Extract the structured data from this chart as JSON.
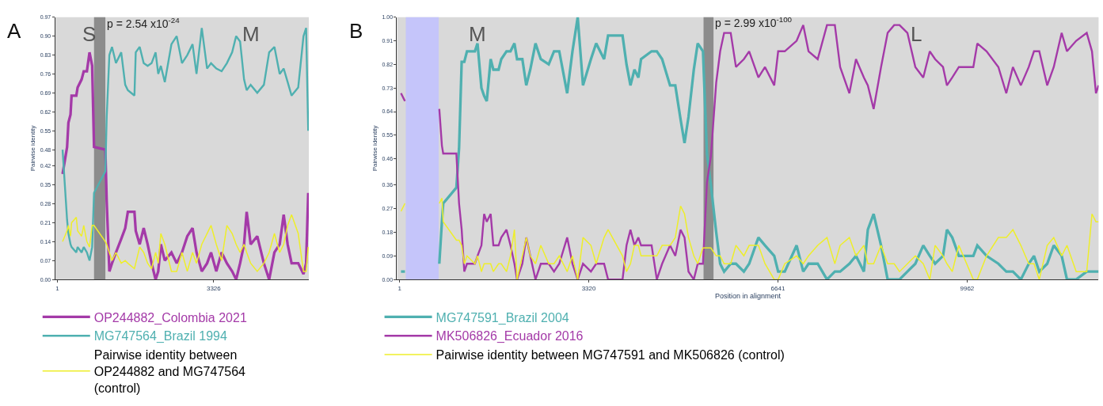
{
  "chart_data": [
    {
      "type": "line",
      "title": "A",
      "ylabel": "Pairwise identity",
      "legend": "bottom left",
      "grid": false,
      "xlim": [
        -45,
        5350
      ],
      "xticks": [
        1,
        3326
      ],
      "ylim": [
        0,
        0.97
      ],
      "yticks": [
        {
          "value": 0,
          "label": "0.00"
        },
        {
          "value": 0.07,
          "label": "0.07"
        },
        {
          "value": 0.14,
          "label": "0.14"
        },
        {
          "value": 0.21,
          "label": "0.21"
        },
        {
          "value": 0.28,
          "label": "0.28"
        },
        {
          "value": 0.35,
          "label": "0.35"
        },
        {
          "value": 0.42,
          "label": "0.42"
        },
        {
          "value": 0.48,
          "label": "0.48"
        },
        {
          "value": 0.55,
          "label": "0.55"
        },
        {
          "value": 0.62,
          "label": "0.62"
        },
        {
          "value": 0.69,
          "label": "0.69"
        },
        {
          "value": 0.76,
          "label": "0.76"
        },
        {
          "value": 0.83,
          "label": "0.83"
        },
        {
          "value": 0.9,
          "label": "0.90"
        },
        {
          "value": 0.97,
          "label": "0.97"
        }
      ],
      "bands": [
        {
          "axis": "x",
          "from": 782,
          "to": 1023,
          "color": "#8c8c8c"
        }
      ],
      "annotations": [
        "S",
        {
          "text": "p = 2.54 x10$^{-24}$",
          "x": 1023,
          "y": 0.95
        },
        "M"
      ],
      "x": [
        113,
        209,
        237,
        282,
        304,
        405,
        433,
        518,
        563,
        630,
        686,
        742,
        782,
        1023,
        1051,
        1108,
        1164,
        1248,
        1360,
        1445,
        1501,
        1641,
        1669,
        1753,
        1838,
        1922,
        2006,
        2091,
        2147,
        2203,
        2287,
        2428,
        2540,
        2652,
        2765,
        2877,
        2961,
        3073,
        3186,
        3270,
        3382,
        3495,
        3607,
        3719,
        3804,
        3888,
        3972,
        4028,
        4113,
        4253,
        4394,
        4506,
        4618,
        4730,
        4815,
        4899,
        4983,
        5124,
        5236,
        5292,
        5337
      ],
      "series": [
        {
          "name": "OP244882_Colombia 2021",
          "color": "#a43aa8",
          "values": [
            0.39,
            0.49,
            0.58,
            0.61,
            0.68,
            0.68,
            0.71,
            0.74,
            0.77,
            0.77,
            0.84,
            0.79,
            0.49,
            0.48,
            0.29,
            0.03,
            0.06,
            0.1,
            0.15,
            0.19,
            0.25,
            0.25,
            0.18,
            0.13,
            0.19,
            0.13,
            0.06,
            0,
            0.03,
            0.13,
            0.07,
            0.1,
            0.06,
            0.1,
            0.16,
            0.19,
            0.1,
            0.03,
            0.06,
            0.1,
            0.03,
            0.1,
            0.06,
            0.03,
            0,
            0.06,
            0.13,
            0.25,
            0.13,
            0.16,
            0.06,
            0,
            0.1,
            0.13,
            0.24,
            0.13,
            0.06,
            0.06,
            0.02,
            0.06,
            0.32
          ]
        },
        {
          "name": "MG747564_Brazil 1994",
          "color": "#4fb0b0",
          "values": [
            0.48,
            0.22,
            0.17,
            0.13,
            0.12,
            0.1,
            0.12,
            0.1,
            0.12,
            0.1,
            0.07,
            0.12,
            0.32,
            0.4,
            0.6,
            0.83,
            0.86,
            0.8,
            0.84,
            0.72,
            0.7,
            0.68,
            0.84,
            0.86,
            0.8,
            0.79,
            0.8,
            0.84,
            0.76,
            0.79,
            0.73,
            0.87,
            0.9,
            0.8,
            0.83,
            0.87,
            0.76,
            0.93,
            0.78,
            0.8,
            0.78,
            0.77,
            0.8,
            0.84,
            0.9,
            0.88,
            0.74,
            0.7,
            0.72,
            0.69,
            0.72,
            0.84,
            0.86,
            0.76,
            0.78,
            0.73,
            0.68,
            0.71,
            0.9,
            0.93,
            0.55
          ]
        },
        {
          "name": "Pairwise identity between OP244882 and MG747564 (control)",
          "color": "#eeee2a",
          "values": [
            0.14,
            0.18,
            0.2,
            0.16,
            0.21,
            0.23,
            0.18,
            0.16,
            0.2,
            0.14,
            0.12,
            0.2,
            0.2,
            0.14,
            0.13,
            0.1,
            0.07,
            0.1,
            0.06,
            0.07,
            0.06,
            0.04,
            0.06,
            0.12,
            0.1,
            0.06,
            0.04,
            0.1,
            0.06,
            0.17,
            0.13,
            0.03,
            0.03,
            0.1,
            0.03,
            0.1,
            0.06,
            0.13,
            0.17,
            0.2,
            0.13,
            0.07,
            0.2,
            0.17,
            0.13,
            0.1,
            0.13,
            0.1,
            0.06,
            0.03,
            0.06,
            0.1,
            0.17,
            0.1,
            0.13,
            0.2,
            0.24,
            0.17,
            0.03,
            0.03,
            0.12
          ]
        }
      ]
    },
    {
      "type": "line",
      "title": "B",
      "ylabel": "Pairwise identity",
      "xlabel": "Position in alignment",
      "legend": "bottom left",
      "grid": false,
      "xlim": [
        -45,
        12270
      ],
      "xticks": [
        1,
        3320,
        6641,
        9962
      ],
      "ylim": [
        0,
        1
      ],
      "yticks": [
        {
          "value": 0,
          "label": "0.00"
        },
        {
          "value": 0.09,
          "label": "0.09"
        },
        {
          "value": 0.18,
          "label": "0.18"
        },
        {
          "value": 0.27,
          "label": "0.27"
        },
        {
          "value": 0.36,
          "label": "0.36"
        },
        {
          "value": 0.46,
          "label": "0.46"
        },
        {
          "value": 0.55,
          "label": "0.55"
        },
        {
          "value": 0.64,
          "label": "0.64"
        },
        {
          "value": 0.73,
          "label": "0.73"
        },
        {
          "value": 0.82,
          "label": "0.82"
        },
        {
          "value": 0.91,
          "label": "0.91"
        },
        {
          "value": 1,
          "label": "1.00"
        }
      ],
      "bands": [
        {
          "axis": "x",
          "from": 108,
          "to": 686,
          "color": "#c5c5fa"
        },
        {
          "axis": "x",
          "from": 5335,
          "to": 5510,
          "color": "#8c8c8c"
        }
      ],
      "annotations": [
        "M",
        {
          "text": "p = 2.99 x10$^{-100}$",
          "x": 5510,
          "y": 0.98
        },
        "L"
      ],
      "x": [
        24,
        93,
        395,
        696,
        742,
        765,
        996,
        1043,
        1089,
        1135,
        1182,
        1321,
        1367,
        1436,
        1483,
        1529,
        1598,
        1645,
        1737,
        1784,
        1876,
        1946,
        2015,
        2061,
        2154,
        2223,
        2293,
        2385,
        2478,
        2617,
        2710,
        2802,
        2941,
        3034,
        3126,
        3219,
        3358,
        3450,
        3589,
        3659,
        3913,
        3983,
        4052,
        4122,
        4191,
        4238,
        4423,
        4515,
        4608,
        4747,
        4839,
        4932,
        5001,
        5071,
        5164,
        5233,
        5325,
        5395,
        5464,
        5557,
        5627,
        5696,
        5812,
        5904,
        6043,
        6136,
        6298,
        6414,
        6576,
        6645,
        6761,
        6969,
        7085,
        7178,
        7339,
        7502,
        7640,
        7733,
        7895,
        8011,
        8150,
        8219,
        8321,
        8451,
        8567,
        8682,
        8775,
        8914,
        9053,
        9192,
        9307,
        9400,
        9539,
        9608,
        9701,
        9817,
        10071,
        10141,
        10303,
        10511,
        10650,
        10766,
        10905,
        11044,
        11136,
        11229,
        11368,
        11483,
        11622,
        11715,
        11877,
        12062,
        12154,
        12224,
        12270
      ],
      "series": [
        {
          "name": "MG747591_Brazil 2004",
          "color": "#4fb0b0",
          "values": [
            0.03,
            0.03,
            null,
            0.06,
            0.22,
            0.29,
            0.35,
            0.5,
            0.83,
            0.83,
            0.87,
            0.87,
            0.9,
            0.73,
            0.7,
            0.68,
            0.84,
            0.8,
            0.8,
            0.84,
            0.87,
            0.87,
            0.9,
            0.84,
            0.84,
            0.74,
            0.8,
            0.9,
            0.84,
            0.82,
            0.87,
            0.87,
            0.71,
            0.87,
            1.0,
            0.74,
            0.84,
            0.9,
            0.84,
            0.93,
            0.93,
            0.82,
            0.74,
            0.8,
            0.77,
            0.84,
            0.87,
            0.87,
            0.84,
            0.74,
            0.74,
            0.61,
            0.52,
            0.62,
            0.8,
            0.9,
            0.87,
            0.48,
            0.36,
            0.18,
            0.06,
            0.03,
            0.06,
            0.06,
            0.03,
            0.06,
            0.16,
            0.13,
            0.09,
            0.03,
            0.03,
            0.13,
            0.03,
            0.06,
            0.06,
            0,
            0.03,
            0.03,
            0.06,
            0.09,
            0.03,
            0.19,
            0.25,
            0.13,
            0,
            0,
            0,
            0.03,
            0.06,
            0.13,
            0.09,
            0.06,
            0.09,
            0.19,
            0.16,
            0.09,
            0.09,
            0.13,
            0.09,
            0.06,
            0.03,
            0.03,
            0,
            0.06,
            0.09,
            0.03,
            0.06,
            0.13,
            0.09,
            0,
            0,
            0.03,
            0.03,
            0.03,
            0.03
          ]
        },
        {
          "name": "MK506826_Ecuador 2016",
          "color": "#a43aa8",
          "values": [
            0.71,
            0.68,
            null,
            0.65,
            0.51,
            0.48,
            0.48,
            0.29,
            0.19,
            0.03,
            0.06,
            0.06,
            0.09,
            0.13,
            0.25,
            0.22,
            0.25,
            0.13,
            0.13,
            0.16,
            0.19,
            0.13,
            0.06,
            0,
            0.06,
            0.16,
            0.09,
            0,
            0.06,
            0.06,
            0.03,
            0.06,
            0.16,
            0.06,
            0,
            0.06,
            0.03,
            0.06,
            0.06,
            0,
            0,
            0.13,
            0.19,
            0.13,
            0.16,
            0.13,
            0.13,
            0,
            0.06,
            0.13,
            0.09,
            0.19,
            0.16,
            0.03,
            0,
            0.06,
            0.06,
            0.37,
            0.47,
            0.75,
            0.87,
            0.94,
            0.94,
            0.81,
            0.84,
            0.87,
            0.77,
            0.81,
            0.74,
            0.87,
            0.87,
            0.91,
            0.97,
            0.87,
            0.84,
            0.97,
            0.97,
            0.81,
            0.71,
            0.84,
            0.77,
            0.74,
            0.65,
            0.81,
            0.94,
            0.97,
            0.97,
            0.94,
            0.81,
            0.77,
            0.87,
            0.84,
            0.81,
            0.74,
            0.77,
            0.81,
            0.81,
            0.9,
            0.87,
            0.81,
            0.71,
            0.81,
            0.74,
            0.81,
            0.87,
            0.87,
            0.74,
            0.81,
            0.94,
            0.87,
            0.91,
            0.94,
            0.87,
            0.71,
            0.74
          ]
        },
        {
          "name": "Pairwise identity between MG747591 and MK506826 (control)",
          "color": "#eeee2a",
          "values": [
            0.26,
            0.29,
            null,
            0.29,
            0.31,
            0.22,
            0.15,
            0.15,
            0.13,
            0.06,
            0.09,
            0.06,
            0.09,
            0.03,
            0.06,
            0.06,
            0.06,
            0.03,
            0.06,
            0.06,
            0.03,
            0.09,
            0.19,
            0,
            0.09,
            0.16,
            0.09,
            0.06,
            0.13,
            0.06,
            0.06,
            0.09,
            0.03,
            0.09,
            0,
            0.16,
            0.13,
            0.06,
            0.16,
            0.19,
            0.09,
            0.03,
            0.06,
            0.13,
            0.13,
            0.09,
            0.09,
            0.09,
            0.13,
            0.13,
            0.16,
            0.28,
            0.25,
            0.16,
            0.09,
            0.06,
            0.12,
            0.12,
            0.12,
            0.09,
            0.09,
            0.06,
            0.06,
            0.13,
            0.09,
            0.13,
            0.13,
            0.06,
            0,
            0,
            0.06,
            0.09,
            0.06,
            0.09,
            0.13,
            0.16,
            0.06,
            0.13,
            0.16,
            0.09,
            0.13,
            0.06,
            0.06,
            0.13,
            0.06,
            0.06,
            0.03,
            0.06,
            0.09,
            0.06,
            0,
            0.13,
            0.09,
            0.06,
            0.03,
            0.13,
            0,
            0,
            0.09,
            0.16,
            0.16,
            0.19,
            0.13,
            0.06,
            0.06,
            0,
            0.13,
            0.16,
            0.09,
            0.13,
            0.03,
            0.03,
            0.25,
            0.22,
            0.22
          ]
        }
      ]
    }
  ]
}
